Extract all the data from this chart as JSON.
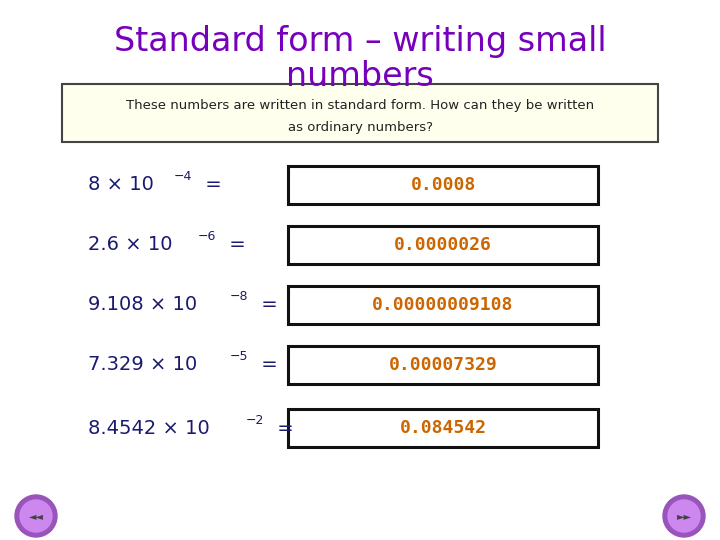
{
  "title_line1": "Standard form – writing small",
  "title_line2": "numbers",
  "title_color": "#7700bb",
  "bg_color": "#ffffff",
  "subtitle_box_color": "#ffffee",
  "subtitle_box_border": "#444444",
  "subtitle_text_line1": "These numbers are written in standard form. How can they be written",
  "subtitle_text_line2": "as ordinary numbers?",
  "subtitle_text_color": "#222222",
  "question_color": "#1a1a6e",
  "answer_color": "#cc6600",
  "answer_box_border": "#111111",
  "answer_box_fill": "#ffffff",
  "rows": [
    {
      "q_base": "8",
      "q_exp": "−4",
      "answer": "0.0008"
    },
    {
      "q_base": "2.6",
      "q_exp": "−6",
      "answer": "0.0000026"
    },
    {
      "q_base": "9.108",
      "q_exp": "−8",
      "answer": "0.00000009108"
    },
    {
      "q_base": "7.329",
      "q_exp": "−5",
      "answer": "0.00007329"
    },
    {
      "q_base": "8.4542",
      "q_exp": "−2",
      "answer": "0.084542"
    }
  ],
  "nav_color_outer": "#9955bb",
  "nav_color_inner": "#cc88ee",
  "nav_text": "..."
}
